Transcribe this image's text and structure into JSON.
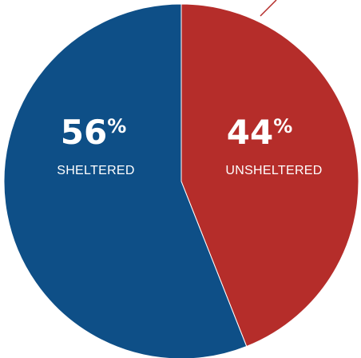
{
  "chart_data": {
    "type": "pie",
    "slices": [
      {
        "label": "UNSHELTERED",
        "value": 44,
        "value_text": "44",
        "unit": "%",
        "color": "#b52d2a"
      },
      {
        "label": "SHELTERED",
        "value": 56,
        "value_text": "56",
        "unit": "%",
        "color": "#0e4f87"
      }
    ],
    "start": "12 o'clock",
    "direction": "clockwise"
  }
}
